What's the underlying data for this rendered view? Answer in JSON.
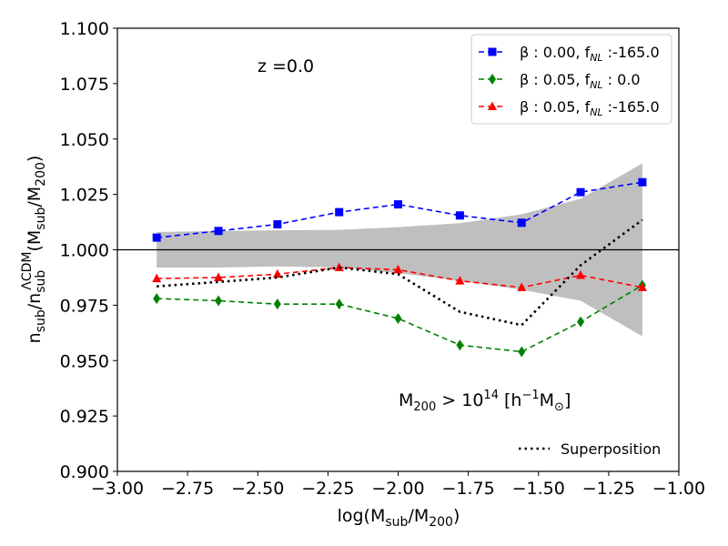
{
  "chart_data": {
    "type": "line",
    "xlabel": "log(M_sub/M_200)",
    "ylabel": "n_sub/n_sub^ΛCDM(M_sub/M_200)",
    "xlim": [
      -3.0,
      -1.0
    ],
    "ylim": [
      0.9,
      1.1
    ],
    "xticks": [
      -3.0,
      -2.75,
      -2.5,
      -2.25,
      -2.0,
      -1.75,
      -1.5,
      -1.25,
      -1.0
    ],
    "xtick_labels": [
      "−3.00",
      "−2.75",
      "−2.50",
      "−2.25",
      "−2.00",
      "−1.75",
      "−1.50",
      "−1.25",
      "−1.00"
    ],
    "yticks": [
      0.9,
      0.925,
      0.95,
      0.975,
      1.0,
      1.025,
      1.05,
      1.075,
      1.1
    ],
    "ytick_labels": [
      "0.900",
      "0.925",
      "0.950",
      "0.975",
      "1.000",
      "1.025",
      "1.050",
      "1.075",
      "1.100"
    ],
    "reference_line": 1.0,
    "x": [
      -2.86,
      -2.64,
      -2.43,
      -2.21,
      -2.0,
      -1.78,
      -1.56,
      -1.35,
      -1.13
    ],
    "band": {
      "upper": [
        1.008,
        1.0085,
        1.0088,
        1.009,
        1.0102,
        1.012,
        1.016,
        1.023,
        1.039
      ],
      "lower": [
        0.992,
        0.992,
        0.9925,
        0.992,
        0.9895,
        0.986,
        0.982,
        0.977,
        0.961
      ]
    },
    "series": [
      {
        "name": "β_0.00_fNL_-165.0",
        "label": "β : 0.00, f",
        "sub": "NL",
        "label_tail": " :-165.0",
        "color": "#0000ff",
        "marker": "square",
        "values": [
          1.0055,
          1.0085,
          1.0115,
          1.017,
          1.0205,
          1.0155,
          1.0122,
          1.026,
          1.0305
        ]
      },
      {
        "name": "β_0.05_fNL_0.0",
        "label": "β : 0.05, f",
        "sub": "NL",
        "label_tail": " : 0.0",
        "color": "#008000",
        "marker": "diamond",
        "values": [
          0.978,
          0.977,
          0.9755,
          0.9755,
          0.969,
          0.957,
          0.954,
          0.9675,
          0.984
        ]
      },
      {
        "name": "β_0.05_fNL_-165.0",
        "label": "β : 0.05, f",
        "sub": "NL",
        "label_tail": " :-165.0",
        "color": "#ff0000",
        "marker": "triangle",
        "values": [
          0.987,
          0.9875,
          0.989,
          0.992,
          0.991,
          0.986,
          0.983,
          0.9885,
          0.983
        ]
      },
      {
        "name": "Superposition",
        "label": "Superposition",
        "color": "#000000",
        "marker": "none",
        "dotted": true,
        "values": [
          0.9835,
          0.9855,
          0.9875,
          0.992,
          0.989,
          0.972,
          0.966,
          0.993,
          1.0135
        ]
      }
    ],
    "annotations": {
      "redshift": "z =0.0",
      "mass_cut": "M200 > 1014 [h−1M⊙]"
    },
    "legend_placement": "top-right"
  }
}
